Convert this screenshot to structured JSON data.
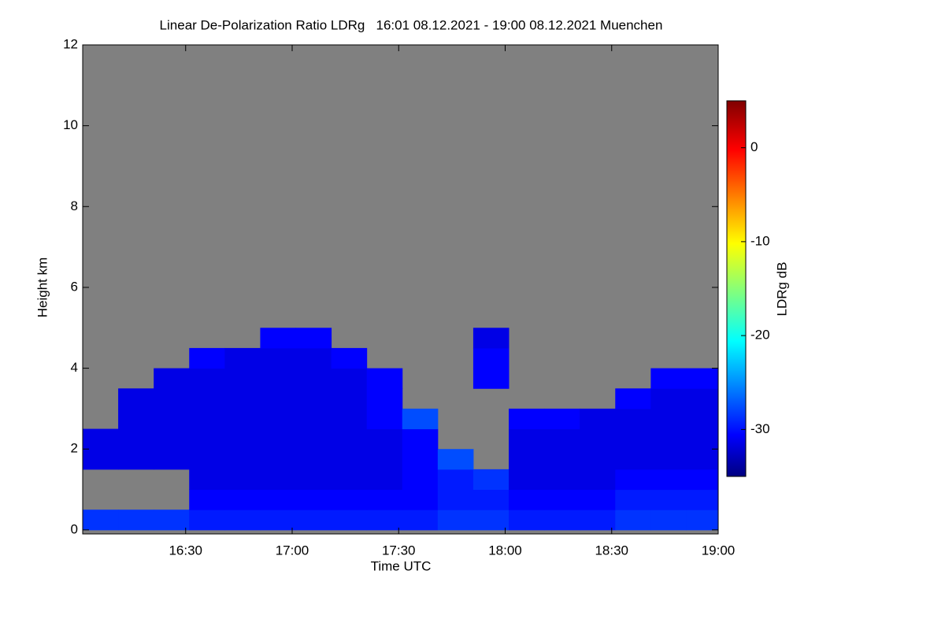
{
  "chart_data": {
    "type": "heatmap",
    "title": "Linear De-Polarization Ratio LDRg   16:01 08.12.2021 - 19:00 08.12.2021 Muenchen",
    "x_label": "Time UTC",
    "y_label": "Height km",
    "colorbar_label": "LDRg dB",
    "xbins": [
      961,
      971,
      981,
      991,
      1001,
      1011,
      1021,
      1031,
      1041,
      1051,
      1061,
      1071,
      1081,
      1091,
      1101,
      1111,
      1121,
      1131,
      1140
    ],
    "ybins": [
      0,
      0.5,
      1,
      1.5,
      2,
      2.5,
      3,
      3.5,
      4,
      4.5,
      5
    ],
    "z": [
      [
        -28,
        -28,
        -28,
        -29,
        -29,
        -29,
        -29,
        -29,
        -29,
        -29,
        -28,
        -28,
        -29,
        -29,
        -29,
        -28,
        -28,
        -28
      ],
      [
        null,
        null,
        null,
        -30,
        -30,
        -30,
        -30,
        -30,
        -30,
        -30,
        -29,
        -29,
        -30,
        -30,
        -30,
        -29,
        -29,
        -29
      ],
      [
        null,
        null,
        null,
        -31,
        -31,
        -31,
        -31,
        -31,
        -31,
        -30,
        -29,
        -28,
        -31,
        -31,
        -31,
        -30,
        -30,
        -30
      ],
      [
        -31,
        -31,
        -31,
        -31,
        -31,
        -31,
        -31,
        -31,
        -31,
        -30,
        -27,
        null,
        -31,
        -31,
        -31,
        -31,
        -31,
        -31
      ],
      [
        -31,
        -31,
        -31,
        -31,
        -31,
        -31,
        -31,
        -31,
        -31,
        -30,
        null,
        null,
        -31,
        -31,
        -31,
        -31,
        -31,
        -31
      ],
      [
        null,
        -31,
        -31,
        -31,
        -31,
        -31,
        -31,
        -31,
        -30,
        -27,
        null,
        null,
        -30,
        -30,
        -31,
        -31,
        -31,
        -31
      ],
      [
        null,
        -31,
        -31,
        -31,
        -31,
        -31,
        -31,
        -31,
        -30,
        null,
        null,
        null,
        null,
        null,
        null,
        -30,
        -31,
        -31
      ],
      [
        null,
        null,
        -31,
        -31,
        -31,
        -31,
        -31,
        -31,
        -30,
        null,
        null,
        -30,
        null,
        null,
        null,
        null,
        -30,
        -30
      ],
      [
        null,
        null,
        null,
        -30,
        -31,
        -31,
        -31,
        -30,
        null,
        null,
        null,
        -30,
        null,
        null,
        null,
        null,
        null,
        null
      ],
      [
        null,
        null,
        null,
        null,
        null,
        -30,
        -30,
        null,
        null,
        null,
        null,
        -31,
        null,
        null,
        null,
        null,
        null,
        null
      ]
    ],
    "xlim": [
      961,
      1140
    ],
    "ylim": [
      -0.1,
      12
    ],
    "clim": [
      -35,
      5
    ],
    "xticks": [
      {
        "value": 990,
        "label": "16:30"
      },
      {
        "value": 1020,
        "label": "17:00"
      },
      {
        "value": 1050,
        "label": "17:30"
      },
      {
        "value": 1080,
        "label": "18:00"
      },
      {
        "value": 1110,
        "label": "18:30"
      },
      {
        "value": 1140,
        "label": "19:00"
      }
    ],
    "yticks": [
      0,
      2,
      4,
      6,
      8,
      10,
      12
    ],
    "cticks": [
      0,
      -10,
      -20,
      -30
    ],
    "colormap": "jet",
    "missing_color": "#808080"
  }
}
